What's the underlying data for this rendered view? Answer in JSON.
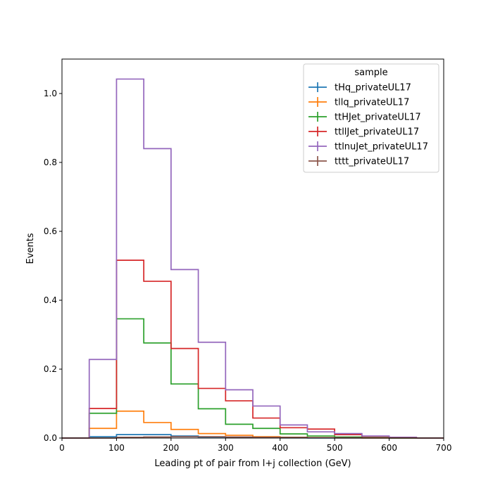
{
  "chart_data": {
    "type": "histogram-step",
    "xlabel": "Leading pt of pair from l+j collection (GeV)",
    "ylabel": "Events",
    "xlim": [
      0,
      700
    ],
    "ylim": [
      0,
      1.1
    ],
    "xticks": [
      0,
      100,
      200,
      300,
      400,
      500,
      600,
      700
    ],
    "xtick_labels": [
      "0",
      "100",
      "200",
      "300",
      "400",
      "500",
      "600",
      "700"
    ],
    "yticks": [
      0.0,
      0.2,
      0.4,
      0.6,
      0.8,
      1.0
    ],
    "ytick_labels": [
      "0.0",
      "0.2",
      "0.4",
      "0.6",
      "0.8",
      "1.0"
    ],
    "bin_edges": [
      0,
      50,
      100,
      150,
      200,
      250,
      300,
      350,
      400,
      450,
      500,
      550,
      600,
      650,
      700
    ],
    "grid": false,
    "legend": {
      "title": "sample",
      "placement": "top-right"
    },
    "series": [
      {
        "name": "tHq_privateUL17",
        "color": "#1f77b4",
        "values": [
          0,
          0.004,
          0.01,
          0.01,
          0.006,
          0.003,
          0.002,
          0.001,
          0.0005,
          0.0003,
          0.0002,
          0.0001,
          0,
          0
        ]
      },
      {
        "name": "tllq_privateUL17",
        "color": "#ff7f0e",
        "values": [
          0,
          0.028,
          0.078,
          0.045,
          0.025,
          0.013,
          0.008,
          0.004,
          0.002,
          0.001,
          0.0005,
          0.0002,
          0.0001,
          0
        ]
      },
      {
        "name": "ttHJet_privateUL17",
        "color": "#2ca02c",
        "values": [
          0,
          0.072,
          0.346,
          0.276,
          0.157,
          0.085,
          0.04,
          0.028,
          0.012,
          0.006,
          0.003,
          0.001,
          0.0005,
          0
        ]
      },
      {
        "name": "ttllJet_privateUL17",
        "color": "#d62728",
        "values": [
          0,
          0.086,
          0.516,
          0.455,
          0.26,
          0.144,
          0.108,
          0.058,
          0.03,
          0.026,
          0.01,
          0.005,
          0.002,
          0
        ]
      },
      {
        "name": "ttlnuJet_privateUL17",
        "color": "#9467bd",
        "values": [
          0,
          0.228,
          1.042,
          0.84,
          0.489,
          0.278,
          0.14,
          0.093,
          0.038,
          0.018,
          0.013,
          0.006,
          0.002,
          0
        ]
      },
      {
        "name": "tttt_privateUL17",
        "color": "#8c564b",
        "values": [
          0,
          0,
          0.002,
          0.003,
          0.004,
          0.004,
          0.003,
          0.002,
          0.002,
          0.001,
          0.001,
          0.0005,
          0.0002,
          0
        ]
      }
    ]
  }
}
